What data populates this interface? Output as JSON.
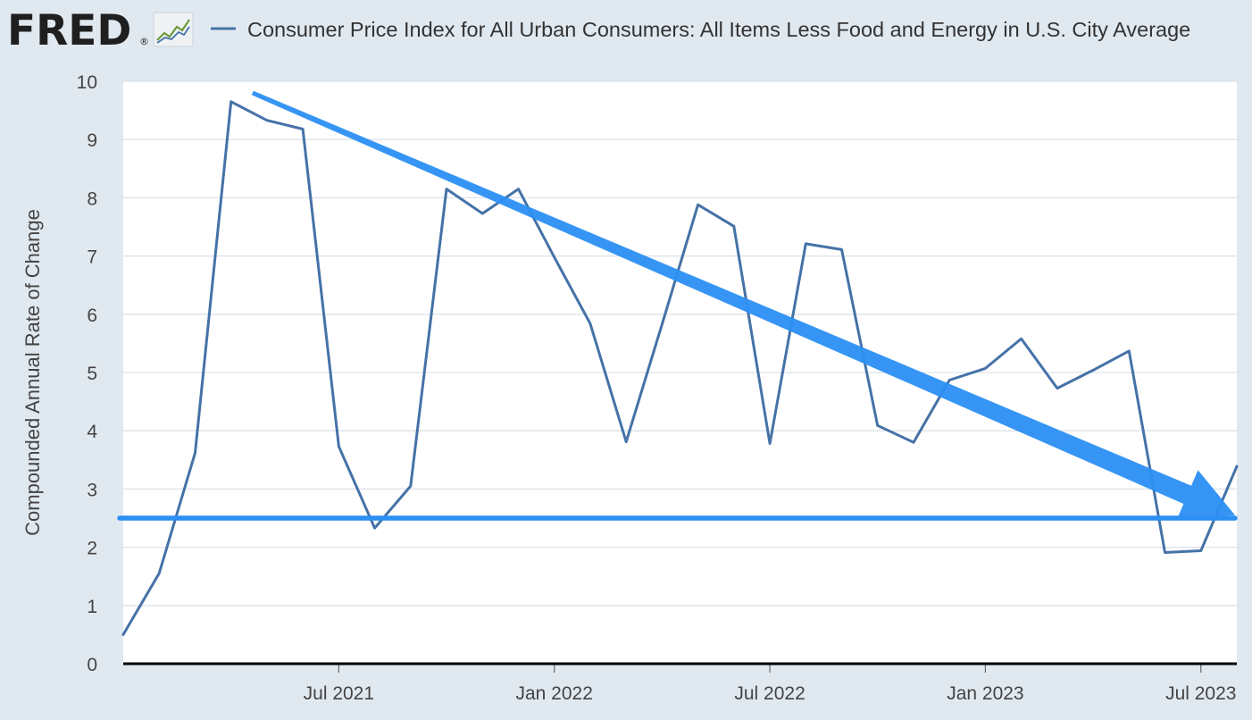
{
  "header": {
    "logo_text": "FRED",
    "logo_mark": "®",
    "series_title": "Consumer Price Index for All Urban Consumers: All Items Less Food and Energy in U.S. City Average"
  },
  "colors": {
    "background": "#e1e9f0",
    "plot_background": "#ffffff",
    "series_line": "#4572a7",
    "annotation_blue": "#2b8ff3",
    "axis_line": "#000000",
    "grid_line": "#dce3ea",
    "logo_dark": "#1f1f1f"
  },
  "icons": {
    "logo_graph": "line-graph-icon",
    "legend_marker": "legend-line-icon"
  },
  "chart_data": {
    "type": "line",
    "title": "Consumer Price Index for All Urban Consumers: All Items Less Food and Energy in U.S. City Average",
    "xlabel": "",
    "ylabel": "Compounded Annual Rate of Change",
    "ylim": [
      0,
      10
    ],
    "yticks": [
      "0",
      "1",
      "2",
      "3",
      "4",
      "5",
      "6",
      "7",
      "8",
      "9",
      "10"
    ],
    "xlim": [
      "2021-01",
      "2023-08"
    ],
    "xticks": [
      {
        "label": "Jul 2021",
        "index": 6
      },
      {
        "label": "Jan 2022",
        "index": 12
      },
      {
        "label": "Jul 2022",
        "index": 18
      },
      {
        "label": "Jan 2023",
        "index": 24
      },
      {
        "label": "Jul 2023",
        "index": 30
      }
    ],
    "grid": true,
    "series": [
      {
        "name": "Consumer Price Index for All Urban Consumers: All Items Less Food and Energy in U.S. City Average",
        "x": [
          "2021-01",
          "2021-02",
          "2021-03",
          "2021-04",
          "2021-05",
          "2021-06",
          "2021-07",
          "2021-08",
          "2021-09",
          "2021-10",
          "2021-11",
          "2021-12",
          "2022-01",
          "2022-02",
          "2022-03",
          "2022-04",
          "2022-05",
          "2022-06",
          "2022-07",
          "2022-08",
          "2022-09",
          "2022-10",
          "2022-11",
          "2022-12",
          "2023-01",
          "2023-02",
          "2023-03",
          "2023-04",
          "2023-05",
          "2023-06",
          "2023-07",
          "2023-08"
        ],
        "values": [
          0.5,
          1.55,
          3.62,
          9.65,
          9.33,
          9.18,
          3.73,
          2.33,
          3.05,
          8.15,
          7.73,
          8.15,
          6.98,
          5.84,
          3.81,
          5.83,
          7.88,
          7.51,
          3.78,
          7.21,
          7.11,
          4.09,
          3.8,
          4.87,
          5.07,
          5.58,
          4.73,
          5.04,
          5.37,
          1.91,
          1.94,
          3.39
        ]
      }
    ],
    "annotations": [
      {
        "type": "horizontal-line",
        "y": 2.5,
        "label": ""
      },
      {
        "type": "trend-arrow",
        "from": {
          "index": 3.6,
          "value": 9.8
        },
        "to": {
          "index": 30.95,
          "value": 2.55
        },
        "label": ""
      }
    ]
  }
}
